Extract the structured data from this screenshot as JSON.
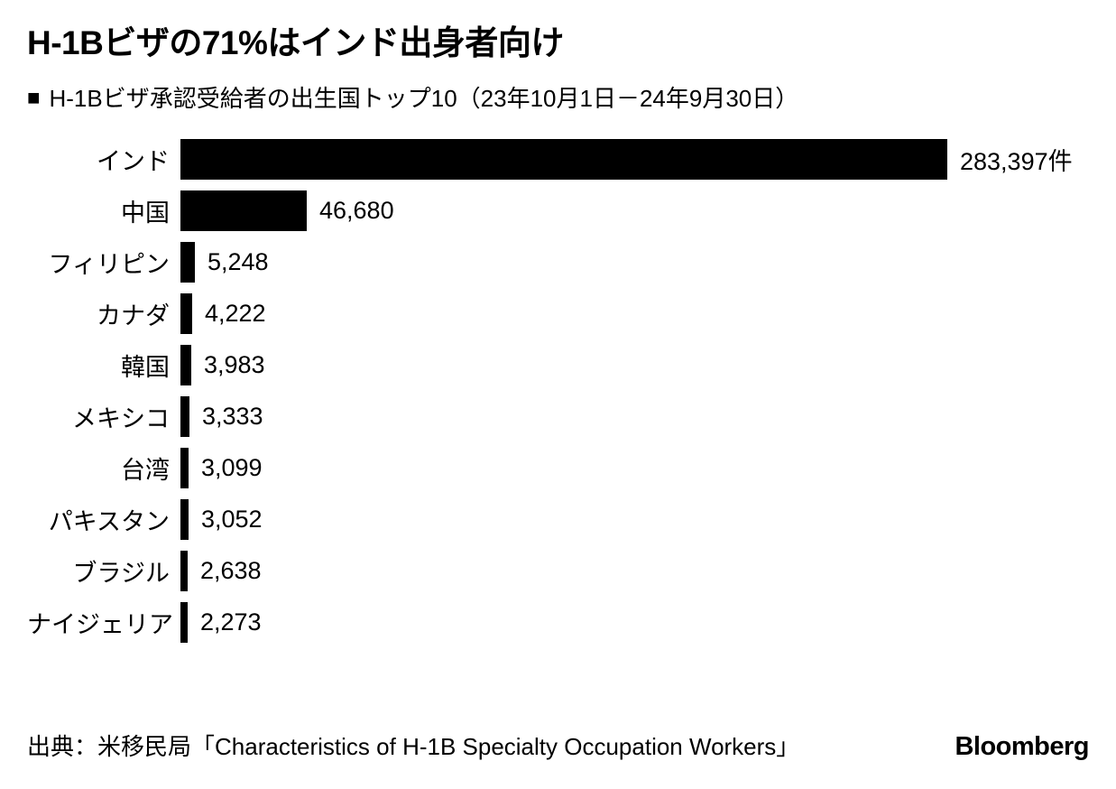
{
  "page": {
    "background_color": "#ffffff",
    "text_color": "#000000"
  },
  "header": {
    "title": "H-1Bビザの71%はインド出身者向け",
    "subtitle_marker": "■",
    "subtitle": "H-1Bビザ承認受給者の出生国トップ10（23年10月1日－24年9月30日）"
  },
  "chart_data": {
    "type": "bar",
    "orientation": "horizontal",
    "title": "H-1Bビザの71%はインド出身者向け",
    "subtitle": "H-1Bビザ承認受給者の出生国トップ10（23年10月1日－24年9月30日）",
    "categories": [
      "インド",
      "中国",
      "フィリピン",
      "カナダ",
      "韓国",
      "メキシコ",
      "台湾",
      "パキスタン",
      "ブラジル",
      "ナイジェリア"
    ],
    "values": [
      283397,
      46680,
      5248,
      4222,
      3983,
      3333,
      3099,
      3052,
      2638,
      2273
    ],
    "value_labels": [
      "283,397件",
      "46,680",
      "5,248",
      "4,222",
      "3,983",
      "3,333",
      "3,099",
      "3,052",
      "2,638",
      "2,273"
    ],
    "unit_suffix_first_bar": "件",
    "bar_color": "#000000",
    "xlim": [
      0,
      283397
    ],
    "grid": false,
    "legend": "none",
    "value_label_position": "right-of-bar"
  },
  "footer": {
    "source": "出典：米移民局「Characteristics of H-1B Specialty Occupation Workers」",
    "brand": "Bloomberg"
  }
}
